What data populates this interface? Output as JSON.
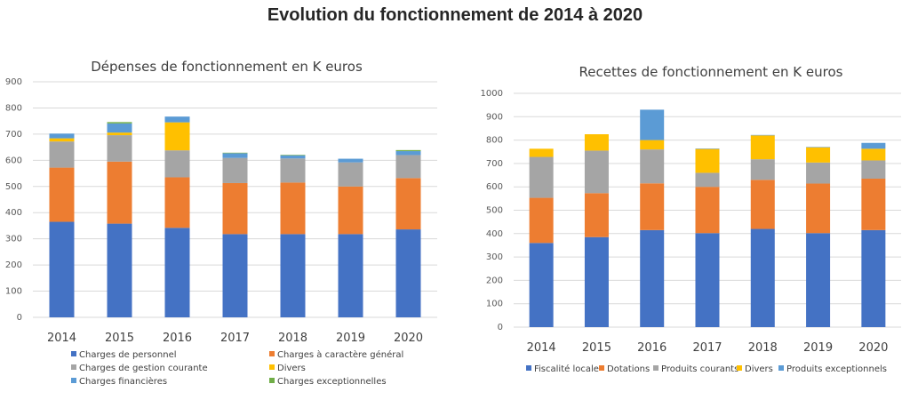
{
  "page_title": "Evolution du fonctionnement de 2014 à 2020",
  "chart_data": [
    {
      "type": "bar",
      "stacked": true,
      "title": "Dépenses de fonctionnement en K euros",
      "xlabel": "",
      "ylabel": "",
      "ylim": [
        0,
        900
      ],
      "yticks": [
        0,
        100,
        200,
        300,
        400,
        500,
        600,
        700,
        800,
        900
      ],
      "grid": true,
      "legend_position": "bottom",
      "categories": [
        "2014",
        "2015",
        "2016",
        "2017",
        "2018",
        "2019",
        "2020"
      ],
      "series": [
        {
          "name": "Charges de personnel",
          "color": "#4472C4",
          "values": [
            365,
            358,
            342,
            318,
            318,
            318,
            336
          ]
        },
        {
          "name": "Charges à caractère général",
          "color": "#ED7D31",
          "values": [
            207,
            237,
            193,
            195,
            197,
            182,
            196
          ]
        },
        {
          "name": "Charges de gestion courante",
          "color": "#A5A5A5",
          "values": [
            100,
            101,
            103,
            96,
            92,
            92,
            88
          ]
        },
        {
          "name": "Divers",
          "color": "#FFC000",
          "values": [
            12,
            10,
            107,
            0,
            0,
            0,
            0
          ]
        },
        {
          "name": "Charges financières",
          "color": "#5B9BD5",
          "values": [
            18,
            35,
            22,
            18,
            12,
            14,
            15
          ]
        },
        {
          "name": "Charges exceptionnelles",
          "color": "#70AD47",
          "values": [
            0,
            5,
            0,
            2,
            2,
            0,
            4
          ]
        }
      ]
    },
    {
      "type": "bar",
      "stacked": true,
      "title": "Recettes de fonctionnement en K euros",
      "xlabel": "",
      "ylabel": "",
      "ylim": [
        0,
        1000
      ],
      "yticks": [
        0,
        100,
        200,
        300,
        400,
        500,
        600,
        700,
        800,
        900,
        1000
      ],
      "grid": true,
      "legend_position": "bottom",
      "categories": [
        "2014",
        "2015",
        "2016",
        "2017",
        "2018",
        "2019",
        "2020"
      ],
      "series": [
        {
          "name": "Fiscalité locale",
          "color": "#4472C4",
          "values": [
            360,
            385,
            415,
            402,
            420,
            402,
            415
          ]
        },
        {
          "name": "Dotations",
          "color": "#ED7D31",
          "values": [
            193,
            188,
            200,
            198,
            210,
            212,
            220
          ]
        },
        {
          "name": "Produits courants",
          "color": "#A5A5A5",
          "values": [
            175,
            182,
            145,
            60,
            88,
            90,
            78
          ]
        },
        {
          "name": "Divers",
          "color": "#FFC000",
          "values": [
            35,
            70,
            40,
            102,
            102,
            65,
            50
          ]
        },
        {
          "name": "Produits exceptionnels",
          "color": "#5B9BD5",
          "values": [
            0,
            0,
            130,
            2,
            2,
            2,
            25
          ]
        }
      ]
    }
  ]
}
